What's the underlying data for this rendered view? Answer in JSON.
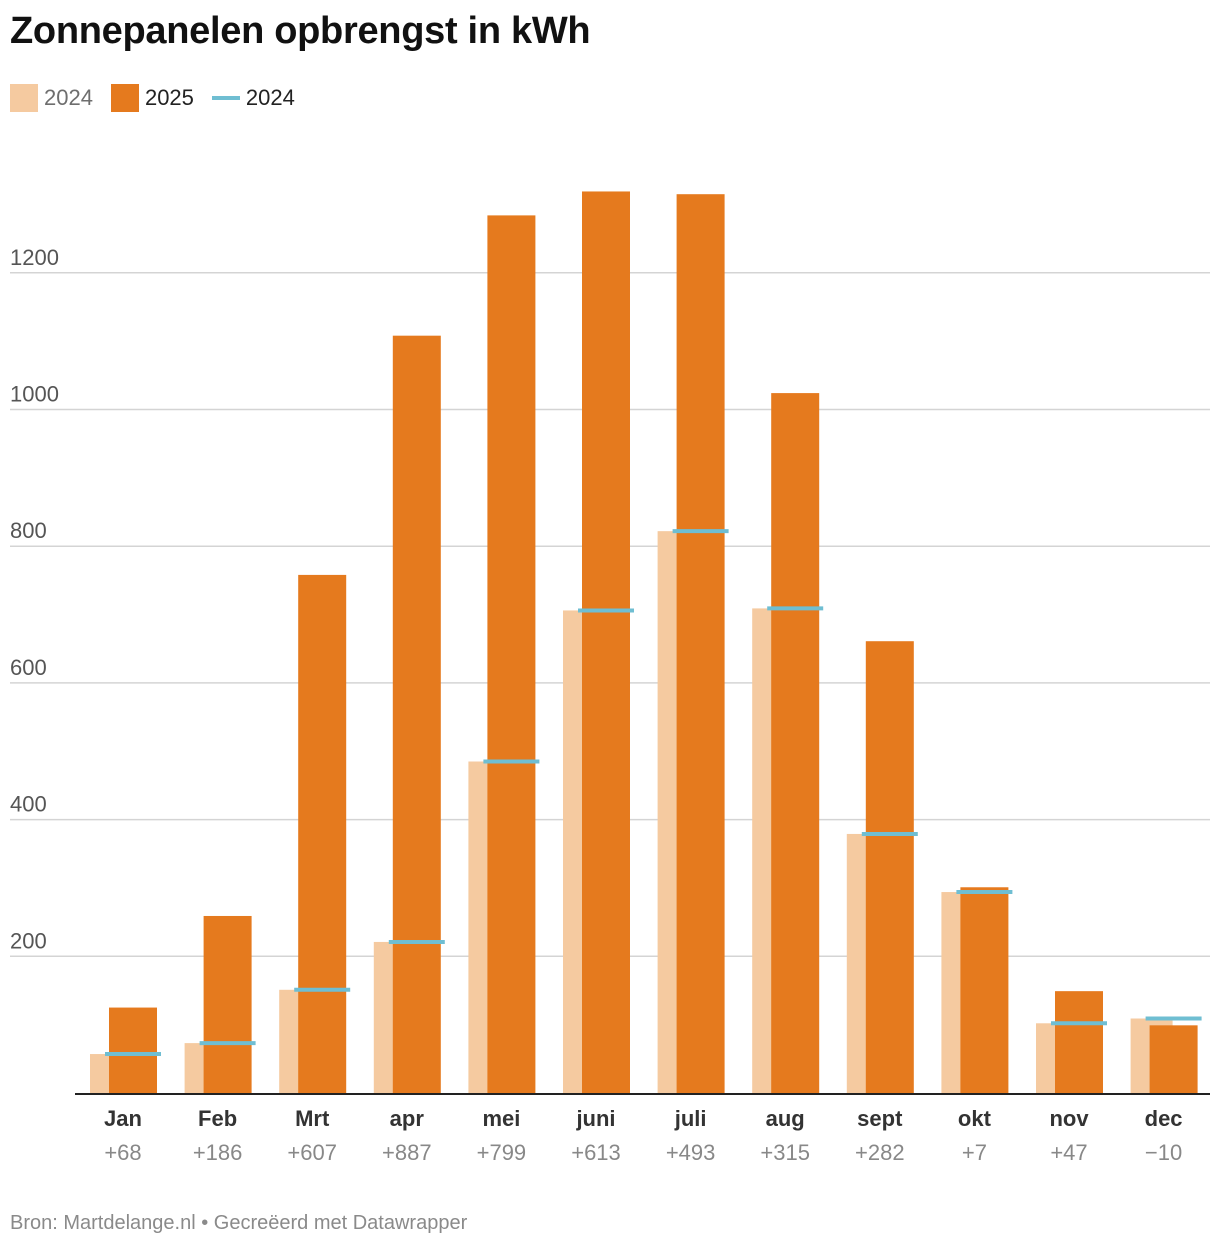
{
  "header": {
    "title": "Zonnepanelen opbrengst in kWh"
  },
  "legend": {
    "items": [
      {
        "label": "2024",
        "color": "#f5caa0",
        "kind": "bar"
      },
      {
        "label": "2025",
        "color": "#e57a1e",
        "kind": "bar"
      },
      {
        "label": "2024",
        "color": "#6fbed2",
        "kind": "line"
      }
    ]
  },
  "footer": {
    "source": "Bron: Martdelange.nl • Gecreëerd met Datawrapper"
  },
  "chart_data": {
    "type": "bar",
    "categories": [
      "Jan",
      "Feb",
      "Mrt",
      "apr",
      "mei",
      "juni",
      "juli",
      "aug",
      "sept",
      "okt",
      "nov",
      "dec"
    ],
    "differences": [
      "+68",
      "+186",
      "+607",
      "+887",
      "+799",
      "+613",
      "+493",
      "+315",
      "+282",
      "+7",
      "+47",
      "−10"
    ],
    "series": [
      {
        "name": "2024",
        "color": "#f5caa0",
        "kind": "bar",
        "values": [
          57,
          73,
          151,
          221,
          485,
          706,
          822,
          709,
          379,
          294,
          102,
          109
        ]
      },
      {
        "name": "2025",
        "color": "#e57a1e",
        "kind": "bar",
        "values": [
          125,
          259,
          758,
          1108,
          1284,
          1319,
          1315,
          1024,
          661,
          301,
          149,
          99
        ]
      },
      {
        "name": "2024",
        "color": "#6fbed2",
        "kind": "marker",
        "values": [
          57,
          73,
          151,
          221,
          485,
          706,
          822,
          709,
          379,
          294,
          102,
          109
        ]
      }
    ],
    "yticks": [
      200,
      400,
      600,
      800,
      1000,
      1200
    ],
    "ylim": [
      0,
      1400
    ],
    "grid": true,
    "legend_position": "top-left",
    "xlabel": "",
    "ylabel": ""
  }
}
